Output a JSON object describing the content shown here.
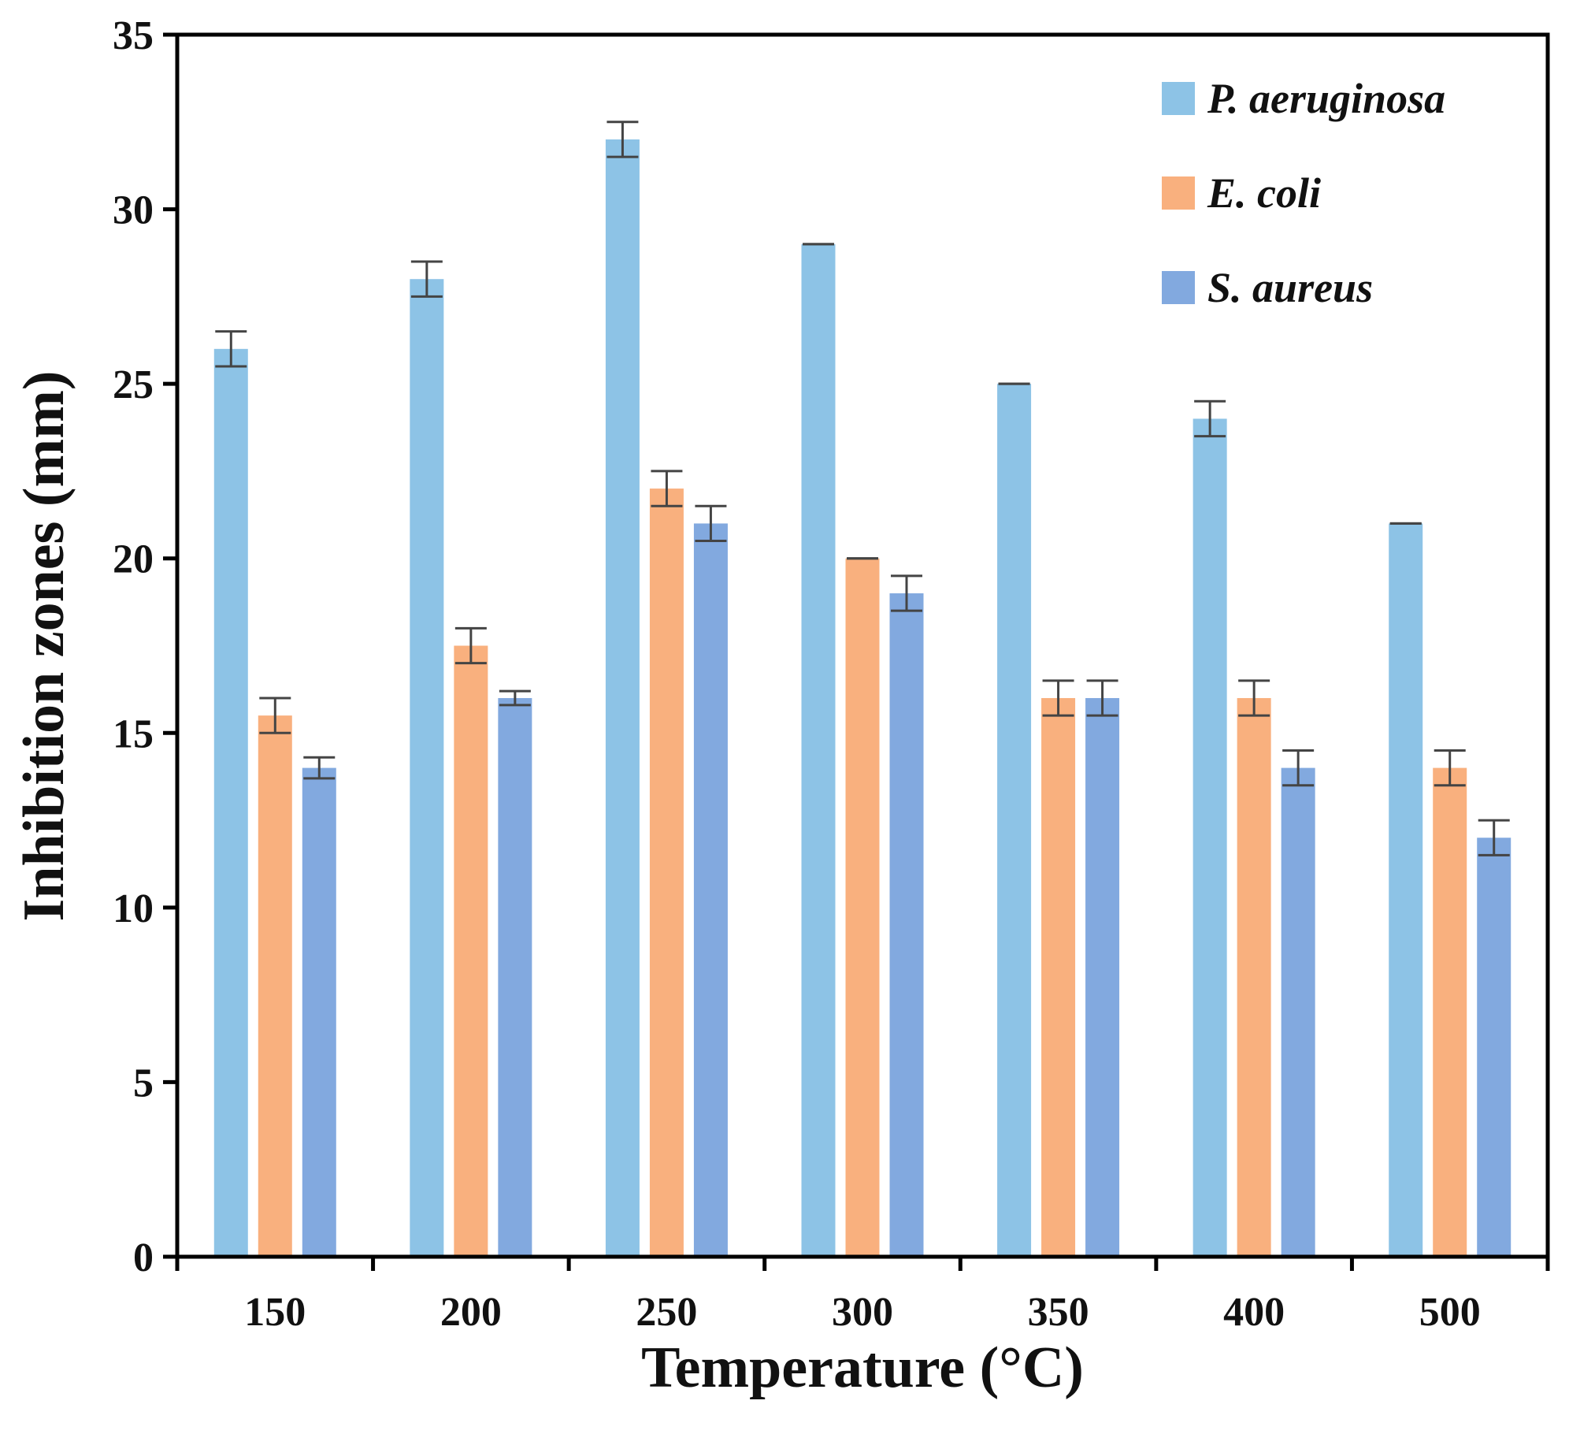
{
  "chart_data": {
    "type": "bar",
    "xlabel": "Temperature (°C)",
    "ylabel": "Inhibition zones (mm)",
    "ylim": [
      0,
      35
    ],
    "yticks": [
      "0",
      "5",
      "10",
      "15",
      "20",
      "25",
      "30",
      "35"
    ],
    "categories": [
      "150",
      "200",
      "250",
      "300",
      "350",
      "400",
      "500"
    ],
    "legend_position": "top-right",
    "grid": false,
    "series": [
      {
        "name": "P. aeruginosa",
        "color": "#8DC3E6",
        "values": [
          26,
          28,
          32,
          29,
          25,
          24,
          21
        ],
        "errors": [
          0.5,
          0.5,
          0.5,
          0,
          0,
          0.5,
          0
        ]
      },
      {
        "name": "E. coli",
        "color": "#F9B07E",
        "values": [
          15.5,
          17.5,
          22,
          20,
          16,
          16,
          14
        ],
        "errors": [
          0.5,
          0.5,
          0.5,
          0,
          0.5,
          0.5,
          0.5
        ]
      },
      {
        "name": "S. aureus",
        "color": "#82A9DF",
        "values": [
          14,
          16,
          21,
          19,
          16,
          14,
          12
        ],
        "errors": [
          0.3,
          0.2,
          0.5,
          0.5,
          0.5,
          0.5,
          0.5
        ]
      }
    ]
  }
}
